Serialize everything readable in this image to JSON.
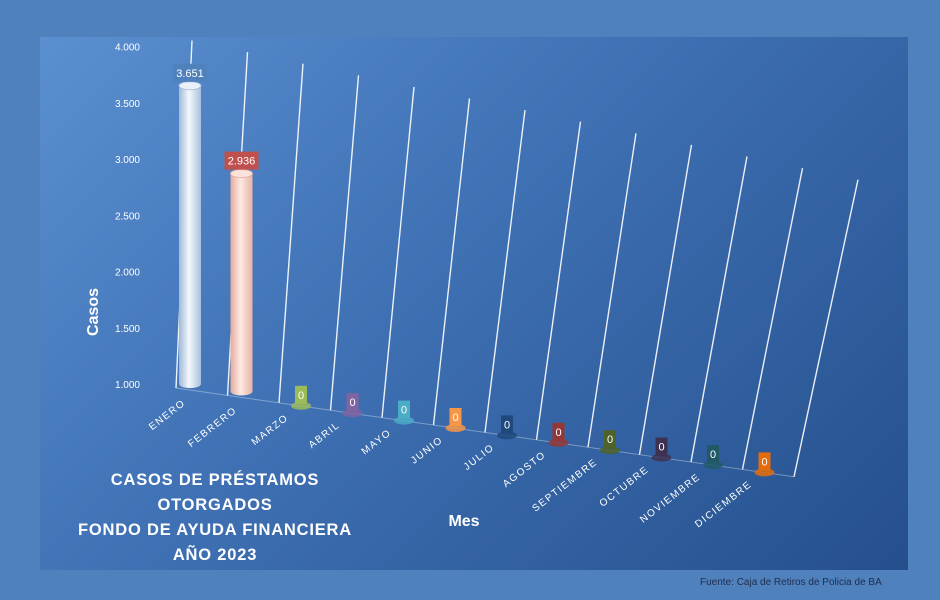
{
  "chart_data": {
    "type": "bar",
    "title_lines": [
      "CASOS DE PRÉSTAMOS OTORGADOS",
      "FONDO DE AYUDA FINANCIERA",
      "AÑO 2023"
    ],
    "xlabel": "Mes",
    "ylabel": "Casos",
    "ylim": [
      1000,
      4000
    ],
    "yticks": [
      "1.000",
      "1.500",
      "2.000",
      "2.500",
      "3.000",
      "3.500",
      "4.000"
    ],
    "categories": [
      "ENERO",
      "FEBRERO",
      "MARZO",
      "ABRIL",
      "MAYO",
      "JUNIO",
      "JULIO",
      "AGOSTO",
      "SEPTIEMBRE",
      "OCTUBRE",
      "NOVIEMBRE",
      "DICIEMBRE"
    ],
    "values": [
      3651,
      2936,
      0,
      0,
      0,
      0,
      0,
      0,
      0,
      0,
      0,
      0
    ],
    "value_labels": [
      "3.651",
      "2.936",
      "0",
      "0",
      "0",
      "0",
      "0",
      "0",
      "0",
      "0",
      "0",
      "0"
    ],
    "colors": [
      "#c6d9f1",
      "#f2c4b8",
      "#9bbb59",
      "#8064a2",
      "#4bacc6",
      "#f79646",
      "#1f497d",
      "#953735",
      "#4f6228",
      "#3f3151",
      "#215967",
      "#e46c0a"
    ],
    "label_colors": [
      "#4f81bd",
      "#c0504d",
      "#9bbb59",
      "#8064a2",
      "#4bacc6",
      "#f79646",
      "#1f497d",
      "#953735",
      "#4f6228",
      "#3f3151",
      "#215967",
      "#e46c0a"
    ],
    "grid": true
  },
  "source": "Fuente: Caja de Retiros de Policia de BA"
}
